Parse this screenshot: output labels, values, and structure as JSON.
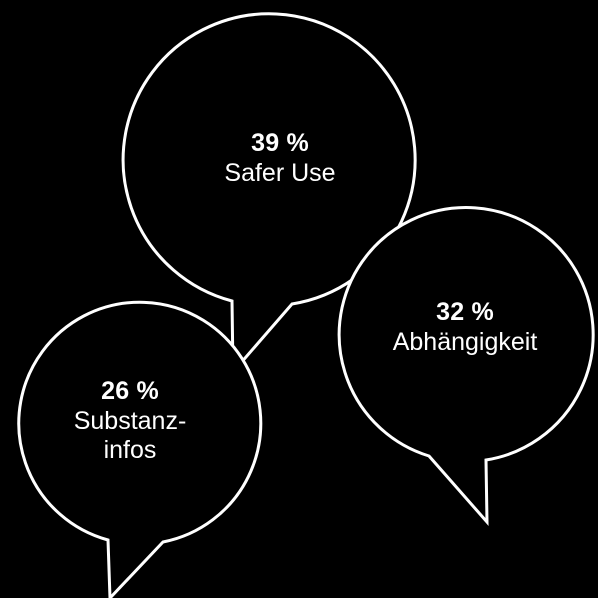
{
  "colors": {
    "background": "#000000",
    "bubble_fill": "#000000",
    "bubble_stroke": "#ffffff",
    "text": "#ffffff"
  },
  "bubbles": [
    {
      "percent": "39 %",
      "label": "Safer Use"
    },
    {
      "percent": "32 %",
      "label": "Abhängigkeit"
    },
    {
      "percent": "26 %",
      "label_line1": "Substanz-",
      "label_line2": "infos"
    }
  ]
}
